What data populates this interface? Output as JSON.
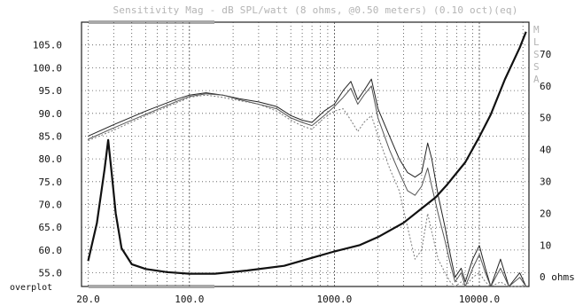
{
  "chart_data": {
    "type": "line",
    "title": "Sensitivity Mag - dB SPL/watt (8 ohms, @0.50 meters) (0.10 oct)(eq)",
    "side_letters": [
      "M",
      "L",
      "S",
      "S",
      "A"
    ],
    "overplot_label": "overplot",
    "x_scale": "log",
    "xlim": [
      18,
      22000
    ],
    "x_ticks": [
      20,
      100,
      1000,
      10000
    ],
    "x_tick_labels": [
      "20.0",
      "100.0",
      "1000.0",
      "10000.0"
    ],
    "left_axis": {
      "ylim": [
        52,
        110
      ],
      "ticks": [
        55,
        60,
        65,
        70,
        75,
        80,
        85,
        90,
        95,
        100,
        105
      ],
      "tick_labels": [
        "55.0",
        "60.0",
        "65.0",
        "70.0",
        "75.0",
        "80.0",
        "85.0",
        "90.0",
        "95.0",
        "100.0",
        "105.0"
      ]
    },
    "right_axis": {
      "ylim": [
        -3,
        80
      ],
      "ticks": [
        0,
        10,
        20,
        30,
        40,
        50,
        60,
        70
      ],
      "tick_labels": [
        "0 ohms",
        "10",
        "20",
        "30",
        "40",
        "50",
        "60",
        "70"
      ]
    },
    "grid": true,
    "series": [
      {
        "axis": "left",
        "color": "#222222",
        "dash": "",
        "points": [
          [
            20,
            85
          ],
          [
            30,
            87.5
          ],
          [
            50,
            90.5
          ],
          [
            80,
            93
          ],
          [
            100,
            94
          ],
          [
            130,
            94.5
          ],
          [
            170,
            94
          ],
          [
            220,
            93.2
          ],
          [
            300,
            92.5
          ],
          [
            400,
            91.5
          ],
          [
            500,
            89.5
          ],
          [
            600,
            88.5
          ],
          [
            700,
            88
          ],
          [
            850,
            90.5
          ],
          [
            1000,
            92
          ],
          [
            1150,
            95
          ],
          [
            1300,
            97
          ],
          [
            1450,
            93
          ],
          [
            1600,
            95
          ],
          [
            1800,
            97.5
          ],
          [
            2000,
            91
          ],
          [
            2400,
            85
          ],
          [
            2800,
            80
          ],
          [
            3200,
            77
          ],
          [
            3600,
            76
          ],
          [
            4000,
            77
          ],
          [
            4400,
            83.5
          ],
          [
            4700,
            80
          ],
          [
            5200,
            72
          ],
          [
            5800,
            65
          ],
          [
            6300,
            59
          ],
          [
            6800,
            54
          ],
          [
            7500,
            56
          ],
          [
            8000,
            53
          ],
          [
            9000,
            58
          ],
          [
            10000,
            61
          ],
          [
            11000,
            56
          ],
          [
            12000,
            52
          ],
          [
            14000,
            58
          ],
          [
            16000,
            52
          ],
          [
            19000,
            55
          ],
          [
            21000,
            52
          ]
        ]
      },
      {
        "axis": "left",
        "color": "#555555",
        "dash": "",
        "points": [
          [
            20,
            84.3
          ],
          [
            30,
            86.8
          ],
          [
            50,
            89.8
          ],
          [
            80,
            92.5
          ],
          [
            100,
            93.7
          ],
          [
            130,
            94.3
          ],
          [
            170,
            94
          ],
          [
            220,
            93
          ],
          [
            300,
            92
          ],
          [
            400,
            91
          ],
          [
            500,
            89
          ],
          [
            600,
            88
          ],
          [
            700,
            87.3
          ],
          [
            850,
            89.5
          ],
          [
            1000,
            91.5
          ],
          [
            1150,
            93.5
          ],
          [
            1300,
            95.5
          ],
          [
            1450,
            92
          ],
          [
            1600,
            94
          ],
          [
            1800,
            96
          ],
          [
            2000,
            89
          ],
          [
            2400,
            82
          ],
          [
            2800,
            77
          ],
          [
            3200,
            73
          ],
          [
            3600,
            72
          ],
          [
            4000,
            74
          ],
          [
            4400,
            78
          ],
          [
            4700,
            74
          ],
          [
            5200,
            68
          ],
          [
            5800,
            62
          ],
          [
            6300,
            57
          ],
          [
            6800,
            53
          ],
          [
            7500,
            55
          ],
          [
            8000,
            52
          ],
          [
            9000,
            56
          ],
          [
            10000,
            59
          ],
          [
            11000,
            55
          ],
          [
            12000,
            52
          ],
          [
            14000,
            56
          ],
          [
            16000,
            52
          ],
          [
            19000,
            54
          ],
          [
            21000,
            52
          ]
        ]
      },
      {
        "axis": "left",
        "color": "#7a7a7a",
        "dash": "2,2",
        "points": [
          [
            20,
            84
          ],
          [
            30,
            86.3
          ],
          [
            50,
            89.5
          ],
          [
            80,
            92.2
          ],
          [
            100,
            93.5
          ],
          [
            130,
            94
          ],
          [
            170,
            93.5
          ],
          [
            220,
            92.8
          ],
          [
            300,
            92
          ],
          [
            400,
            90.5
          ],
          [
            500,
            88.5
          ],
          [
            600,
            87.2
          ],
          [
            700,
            86.5
          ],
          [
            850,
            89
          ],
          [
            1000,
            90.5
          ],
          [
            1150,
            91
          ],
          [
            1300,
            88.5
          ],
          [
            1450,
            86
          ],
          [
            1600,
            88
          ],
          [
            1800,
            89.5
          ],
          [
            2000,
            85
          ],
          [
            2400,
            78
          ],
          [
            2800,
            73
          ],
          [
            3200,
            65
          ],
          [
            3600,
            58
          ],
          [
            4000,
            60
          ],
          [
            4400,
            68
          ],
          [
            4700,
            64
          ],
          [
            5200,
            58
          ],
          [
            5800,
            55
          ],
          [
            6300,
            53
          ],
          [
            6800,
            52
          ],
          [
            7500,
            53
          ],
          [
            8000,
            52
          ],
          [
            9000,
            54
          ],
          [
            10000,
            55
          ],
          [
            11000,
            53
          ],
          [
            12000,
            52
          ],
          [
            14000,
            53
          ],
          [
            16000,
            52
          ],
          [
            19000,
            52
          ],
          [
            21000,
            52
          ]
        ]
      },
      {
        "axis": "right",
        "color": "#111111",
        "dash": "",
        "width": 2.2,
        "points": [
          [
            20,
            5
          ],
          [
            23,
            17
          ],
          [
            26,
            34
          ],
          [
            27.5,
            43
          ],
          [
            29,
            33
          ],
          [
            31,
            20
          ],
          [
            34,
            9
          ],
          [
            40,
            4
          ],
          [
            50,
            2.5
          ],
          [
            70,
            1.5
          ],
          [
            100,
            1
          ],
          [
            150,
            1
          ],
          [
            250,
            2
          ],
          [
            450,
            3.5
          ],
          [
            700,
            6
          ],
          [
            1000,
            8
          ],
          [
            1500,
            10
          ],
          [
            2000,
            12.5
          ],
          [
            3000,
            17
          ],
          [
            4000,
            21.5
          ],
          [
            5000,
            25
          ],
          [
            6000,
            29
          ],
          [
            8000,
            36
          ],
          [
            10000,
            44
          ],
          [
            12000,
            51
          ],
          [
            15000,
            62
          ],
          [
            19000,
            72
          ],
          [
            21000,
            77
          ]
        ]
      }
    ]
  }
}
